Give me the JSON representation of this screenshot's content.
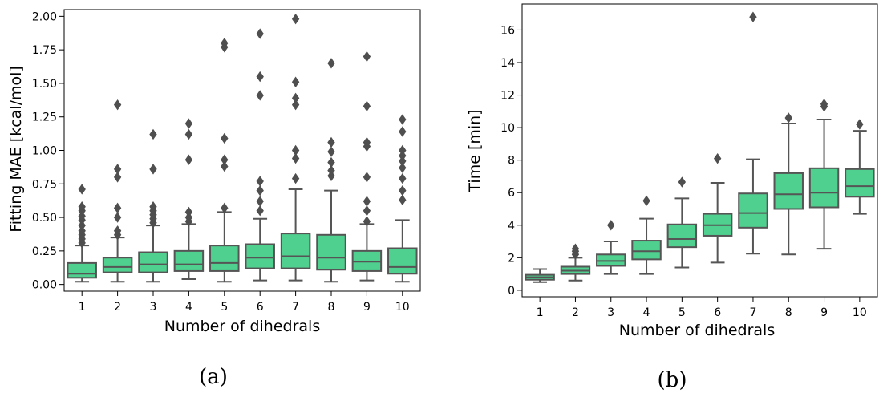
{
  "colors": {
    "box_fill": "#4fd08f",
    "box_edge": "#555555",
    "axes": "#000000",
    "background": "#ffffff"
  },
  "chart_data": [
    {
      "type": "box",
      "caption": "(a)",
      "xlabel": "Number of dihedrals",
      "ylabel": "Fitting MAE [kcal/mol]",
      "ylim": [
        -0.05,
        2.05
      ],
      "yticks": [
        "0.00",
        "0.25",
        "0.50",
        "0.75",
        "1.00",
        "1.25",
        "1.50",
        "1.75",
        "2.00"
      ],
      "categories": [
        "1",
        "2",
        "3",
        "4",
        "5",
        "6",
        "7",
        "8",
        "9",
        "10"
      ],
      "boxes": [
        {
          "whisker_low": 0.02,
          "q1": 0.05,
          "median": 0.08,
          "q3": 0.16,
          "whisker_high": 0.29,
          "outliers": [
            0.31,
            0.34,
            0.37,
            0.4,
            0.44,
            0.48,
            0.51,
            0.55,
            0.58,
            0.71
          ]
        },
        {
          "whisker_low": 0.02,
          "q1": 0.09,
          "median": 0.13,
          "q3": 0.2,
          "whisker_high": 0.35,
          "outliers": [
            0.37,
            0.4,
            0.5,
            0.57,
            0.8,
            0.86,
            1.34
          ]
        },
        {
          "whisker_low": 0.02,
          "q1": 0.09,
          "median": 0.15,
          "q3": 0.24,
          "whisker_high": 0.44,
          "outliers": [
            0.46,
            0.49,
            0.52,
            0.55,
            0.58,
            0.86,
            1.12
          ]
        },
        {
          "whisker_low": 0.04,
          "q1": 0.1,
          "median": 0.15,
          "q3": 0.25,
          "whisker_high": 0.45,
          "outliers": [
            0.47,
            0.5,
            0.54,
            0.93,
            1.12,
            1.2
          ]
        },
        {
          "whisker_low": 0.02,
          "q1": 0.1,
          "median": 0.16,
          "q3": 0.29,
          "whisker_high": 0.54,
          "outliers": [
            0.57,
            0.88,
            0.93,
            1.09,
            1.77,
            1.8
          ]
        },
        {
          "whisker_low": 0.03,
          "q1": 0.12,
          "median": 0.2,
          "q3": 0.3,
          "whisker_high": 0.49,
          "outliers": [
            0.55,
            0.62,
            0.7,
            0.77,
            1.41,
            1.55,
            1.87
          ]
        },
        {
          "whisker_low": 0.03,
          "q1": 0.12,
          "median": 0.21,
          "q3": 0.38,
          "whisker_high": 0.71,
          "outliers": [
            0.79,
            0.94,
            1.0,
            1.34,
            1.39,
            1.51,
            1.98
          ]
        },
        {
          "whisker_low": 0.02,
          "q1": 0.11,
          "median": 0.2,
          "q3": 0.37,
          "whisker_high": 0.7,
          "outliers": [
            0.81,
            0.85,
            0.91,
            0.99,
            1.06,
            1.65
          ]
        },
        {
          "whisker_low": 0.03,
          "q1": 0.1,
          "median": 0.17,
          "q3": 0.25,
          "whisker_high": 0.45,
          "outliers": [
            0.47,
            0.55,
            0.62,
            0.8,
            1.03,
            1.06,
            1.33,
            1.7
          ]
        },
        {
          "whisker_low": 0.02,
          "q1": 0.08,
          "median": 0.13,
          "q3": 0.27,
          "whisker_high": 0.48,
          "outliers": [
            0.63,
            0.7,
            0.79,
            0.87,
            0.92,
            0.96,
            1.0,
            1.14,
            1.23
          ]
        }
      ]
    },
    {
      "type": "box",
      "caption": "(b)",
      "xlabel": "Number of dihedrals",
      "ylabel": "Time [min]",
      "ylim": [
        -0.4,
        17.6
      ],
      "yticks": [
        "0",
        "2",
        "4",
        "6",
        "8",
        "10",
        "12",
        "14",
        "16"
      ],
      "categories": [
        "1",
        "2",
        "3",
        "4",
        "5",
        "6",
        "7",
        "8",
        "9",
        "10"
      ],
      "boxes": [
        {
          "whisker_low": 0.5,
          "q1": 0.65,
          "median": 0.8,
          "q3": 0.95,
          "whisker_high": 1.3,
          "outliers": []
        },
        {
          "whisker_low": 0.6,
          "q1": 1.0,
          "median": 1.2,
          "q3": 1.45,
          "whisker_high": 2.0,
          "outliers": [
            2.2,
            2.4,
            2.55
          ]
        },
        {
          "whisker_low": 1.0,
          "q1": 1.5,
          "median": 1.8,
          "q3": 2.2,
          "whisker_high": 3.0,
          "outliers": [
            4.0
          ]
        },
        {
          "whisker_low": 1.0,
          "q1": 1.9,
          "median": 2.4,
          "q3": 3.05,
          "whisker_high": 4.4,
          "outliers": [
            5.5
          ]
        },
        {
          "whisker_low": 1.4,
          "q1": 2.65,
          "median": 3.15,
          "q3": 4.05,
          "whisker_high": 5.65,
          "outliers": [
            6.65
          ]
        },
        {
          "whisker_low": 1.7,
          "q1": 3.35,
          "median": 4.0,
          "q3": 4.7,
          "whisker_high": 6.6,
          "outliers": [
            8.1
          ]
        },
        {
          "whisker_low": 2.25,
          "q1": 3.85,
          "median": 4.75,
          "q3": 5.95,
          "whisker_high": 8.05,
          "outliers": [
            16.8
          ]
        },
        {
          "whisker_low": 2.2,
          "q1": 5.0,
          "median": 5.9,
          "q3": 7.2,
          "whisker_high": 10.25,
          "outliers": [
            10.6
          ]
        },
        {
          "whisker_low": 2.55,
          "q1": 5.1,
          "median": 6.0,
          "q3": 7.5,
          "whisker_high": 10.5,
          "outliers": [
            11.3,
            11.45
          ]
        },
        {
          "whisker_low": 4.7,
          "q1": 5.75,
          "median": 6.4,
          "q3": 7.45,
          "whisker_high": 9.8,
          "outliers": [
            10.2
          ]
        }
      ]
    }
  ]
}
